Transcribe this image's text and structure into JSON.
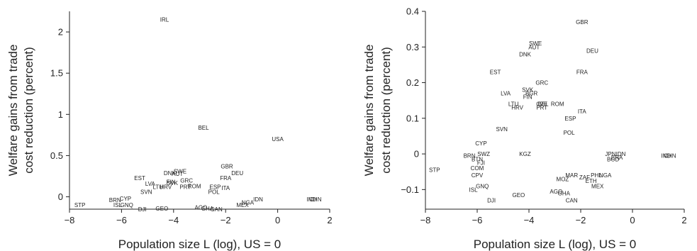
{
  "chart_data": [
    {
      "type": "scatter",
      "xlabel": "Population size L (log), US = 0",
      "ylabel_line1": "Welfare gains from trade",
      "ylabel_line2": "cost reduction (percent)",
      "xlim": [
        -8,
        2
      ],
      "ylim": [
        -0.15,
        2.25
      ],
      "xticks": [
        -8,
        -6,
        -4,
        -2,
        0,
        2
      ],
      "yticks": [
        0,
        0.5,
        1,
        1.5,
        2
      ],
      "ytick_labels": [
        "0",
        "0.5",
        "1",
        "1.5",
        "2"
      ],
      "points": [
        {
          "label": "IRL",
          "x": -4.35,
          "y": 2.15
        },
        {
          "label": "BEL",
          "x": -2.85,
          "y": 0.84
        },
        {
          "label": "USA",
          "x": 0.0,
          "y": 0.7
        },
        {
          "label": "GBR",
          "x": -1.95,
          "y": 0.37
        },
        {
          "label": "DEU",
          "x": -1.55,
          "y": 0.29
        },
        {
          "label": "FRA",
          "x": -2.0,
          "y": 0.23
        },
        {
          "label": "ITA",
          "x": -2.0,
          "y": 0.11
        },
        {
          "label": "ESP",
          "x": -2.4,
          "y": 0.12
        },
        {
          "label": "POL",
          "x": -2.45,
          "y": 0.06
        },
        {
          "label": "ROM",
          "x": -3.2,
          "y": 0.13
        },
        {
          "label": "SWE",
          "x": -3.75,
          "y": 0.31
        },
        {
          "label": "DNK",
          "x": -4.15,
          "y": 0.29
        },
        {
          "label": "AUT",
          "x": -3.85,
          "y": 0.28
        },
        {
          "label": "GRC",
          "x": -3.5,
          "y": 0.2
        },
        {
          "label": "FIN",
          "x": -4.1,
          "y": 0.18
        },
        {
          "label": "SVK",
          "x": -4.05,
          "y": 0.17
        },
        {
          "label": "EST",
          "x": -5.3,
          "y": 0.23
        },
        {
          "label": "LVA",
          "x": -4.9,
          "y": 0.16
        },
        {
          "label": "LTU",
          "x": -4.6,
          "y": 0.12
        },
        {
          "label": "HRV",
          "x": -4.3,
          "y": 0.12
        },
        {
          "label": "PRT",
          "x": -3.55,
          "y": 0.12
        },
        {
          "label": "SVN",
          "x": -5.05,
          "y": 0.06
        },
        {
          "label": "CYP",
          "x": -5.85,
          "y": -0.02
        },
        {
          "label": "STP",
          "x": -7.6,
          "y": -0.1
        },
        {
          "label": "BRN",
          "x": -6.25,
          "y": -0.04
        },
        {
          "label": "ISL",
          "x": -6.15,
          "y": -0.1
        },
        {
          "label": "GNQ",
          "x": -5.8,
          "y": -0.1
        },
        {
          "label": "DJI",
          "x": -5.2,
          "y": -0.15
        },
        {
          "label": "GEO",
          "x": -4.45,
          "y": -0.14
        },
        {
          "label": "AGO",
          "x": -2.95,
          "y": -0.13
        },
        {
          "label": "GHA",
          "x": -2.7,
          "y": -0.14
        },
        {
          "label": "CAN",
          "x": -2.35,
          "y": -0.15
        },
        {
          "label": "MEX",
          "x": -1.35,
          "y": -0.1
        },
        {
          "label": "NGA",
          "x": -1.15,
          "y": -0.07
        },
        {
          "label": "IDN",
          "x": -0.75,
          "y": -0.03
        },
        {
          "label": "IND",
          "x": 1.3,
          "y": -0.03
        },
        {
          "label": "CHN",
          "x": 1.45,
          "y": -0.03
        }
      ]
    },
    {
      "type": "scatter",
      "xlabel": "Population size L (log), US = 0",
      "ylabel_line1": "Welfare gains from trade",
      "ylabel_line2": "cost reduction (percent)",
      "xlim": [
        -8,
        2
      ],
      "ylim": [
        -0.155,
        0.4
      ],
      "xticks": [
        -8,
        -6,
        -4,
        -2,
        0,
        2
      ],
      "yticks": [
        -0.1,
        0,
        0.1,
        0.2,
        0.3,
        0.4
      ],
      "ytick_labels": [
        "−0.1",
        "0",
        "0.1",
        "0.2",
        "0.3",
        "0.4"
      ],
      "points": [
        {
          "label": "GBR",
          "x": -1.95,
          "y": 0.37
        },
        {
          "label": "DEU",
          "x": -1.55,
          "y": 0.29
        },
        {
          "label": "SWE",
          "x": -3.75,
          "y": 0.31
        },
        {
          "label": "AUT",
          "x": -3.8,
          "y": 0.3
        },
        {
          "label": "DNK",
          "x": -4.15,
          "y": 0.28
        },
        {
          "label": "EST",
          "x": -5.3,
          "y": 0.23
        },
        {
          "label": "FRA",
          "x": -1.95,
          "y": 0.23
        },
        {
          "label": "GRC",
          "x": -3.5,
          "y": 0.2
        },
        {
          "label": "SVK",
          "x": -4.05,
          "y": 0.18
        },
        {
          "label": "LVA",
          "x": -4.9,
          "y": 0.17
        },
        {
          "label": "BGR",
          "x": -3.9,
          "y": 0.17
        },
        {
          "label": "FIN",
          "x": -4.05,
          "y": 0.16
        },
        {
          "label": "LTU",
          "x": -4.6,
          "y": 0.14
        },
        {
          "label": "CZE",
          "x": -3.5,
          "y": 0.14
        },
        {
          "label": "BEL",
          "x": -3.45,
          "y": 0.14
        },
        {
          "label": "ROM",
          "x": -2.9,
          "y": 0.14
        },
        {
          "label": "HRV",
          "x": -4.45,
          "y": 0.13
        },
        {
          "label": "PRT",
          "x": -3.5,
          "y": 0.13
        },
        {
          "label": "ITA",
          "x": -1.95,
          "y": 0.12
        },
        {
          "label": "ESP",
          "x": -2.4,
          "y": 0.1
        },
        {
          "label": "SVN",
          "x": -5.05,
          "y": 0.07
        },
        {
          "label": "POL",
          "x": -2.45,
          "y": 0.06
        },
        {
          "label": "CYP",
          "x": -5.85,
          "y": 0.03
        },
        {
          "label": "BRN",
          "x": -6.3,
          "y": -0.005
        },
        {
          "label": "SWZ",
          "x": -5.75,
          "y": 0.0
        },
        {
          "label": "BTN",
          "x": -6.0,
          "y": -0.015
        },
        {
          "label": "FJI",
          "x": -5.85,
          "y": -0.025
        },
        {
          "label": "COM",
          "x": -6.0,
          "y": -0.04
        },
        {
          "label": "STP",
          "x": -7.65,
          "y": -0.045
        },
        {
          "label": "CPV",
          "x": -6.0,
          "y": -0.06
        },
        {
          "label": "ISL",
          "x": -6.15,
          "y": -0.1
        },
        {
          "label": "GNQ",
          "x": -5.8,
          "y": -0.09
        },
        {
          "label": "DJI",
          "x": -5.45,
          "y": -0.13
        },
        {
          "label": "GEO",
          "x": -4.4,
          "y": -0.115
        },
        {
          "label": "AGO",
          "x": -2.95,
          "y": -0.105
        },
        {
          "label": "GHA",
          "x": -2.65,
          "y": -0.11
        },
        {
          "label": "CAN",
          "x": -2.35,
          "y": -0.13
        },
        {
          "label": "MEX",
          "x": -1.35,
          "y": -0.09
        },
        {
          "label": "ETH",
          "x": -1.6,
          "y": -0.075
        },
        {
          "label": "ZAF",
          "x": -1.85,
          "y": -0.065
        },
        {
          "label": "PHL",
          "x": -1.4,
          "y": -0.06
        },
        {
          "label": "NGA",
          "x": -1.05,
          "y": -0.06
        },
        {
          "label": "MOZ",
          "x": -2.7,
          "y": -0.07
        },
        {
          "label": "MAR",
          "x": -2.35,
          "y": -0.06
        },
        {
          "label": "KGZ",
          "x": -4.15,
          "y": 0.0
        },
        {
          "label": "JPN",
          "x": -0.85,
          "y": 0.0
        },
        {
          "label": "IDN",
          "x": -0.45,
          "y": 0.0
        },
        {
          "label": "IND",
          "x": 1.3,
          "y": -0.005
        },
        {
          "label": "CHN",
          "x": 1.45,
          "y": -0.005
        },
        {
          "label": "BRA",
          "x": -0.6,
          "y": -0.01
        },
        {
          "label": "BGD",
          "x": -0.75,
          "y": -0.015
        }
      ]
    }
  ]
}
